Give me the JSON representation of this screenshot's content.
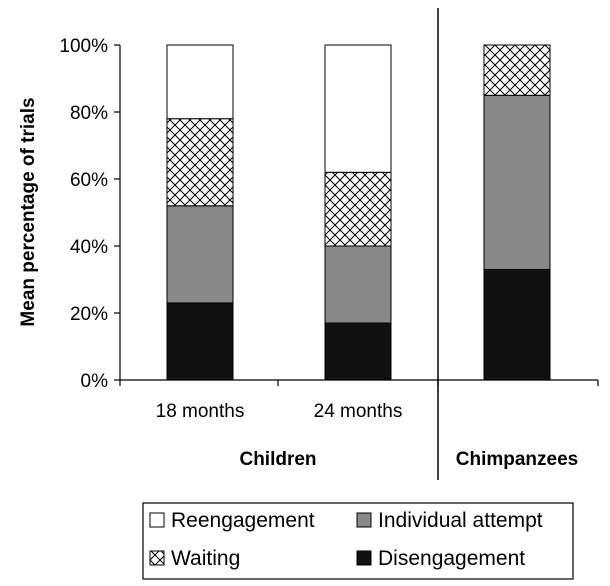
{
  "chart_data": {
    "type": "bar",
    "stacked": true,
    "categories": [
      "18 months",
      "24 months",
      ""
    ],
    "groups": [
      {
        "label": "Children",
        "categories": [
          "18 months",
          "24 months"
        ]
      },
      {
        "label": "Chimpanzees",
        "categories": [
          ""
        ]
      }
    ],
    "series": [
      {
        "name": "Disengagement",
        "values": [
          23,
          17,
          33
        ],
        "color": "#111111",
        "pattern": "solid"
      },
      {
        "name": "Individual attempt",
        "values": [
          29,
          23,
          52
        ],
        "color": "#888888",
        "pattern": "solid"
      },
      {
        "name": "Waiting",
        "values": [
          26,
          22,
          15
        ],
        "color": "#ffffff",
        "pattern": "crosshatch"
      },
      {
        "name": "Reengagement",
        "values": [
          22,
          38,
          0
        ],
        "color": "#ffffff",
        "pattern": "solid"
      }
    ],
    "ylabel": "Mean percentage of trials",
    "xlabel": "",
    "ylim": [
      0,
      100
    ],
    "yticks": [
      "0%",
      "20%",
      "40%",
      "60%",
      "80%",
      "100%"
    ],
    "ytick_values": [
      0,
      20,
      40,
      60,
      80,
      100
    ],
    "grid": false,
    "legend_position": "bottom",
    "legend": [
      {
        "series": "Reengagement",
        "label": "Reengagement"
      },
      {
        "series": "Individual attempt",
        "label": "Individual attempt"
      },
      {
        "series": "Waiting",
        "label": "Waiting"
      },
      {
        "series": "Disengagement",
        "label": "Disengagement"
      }
    ]
  }
}
